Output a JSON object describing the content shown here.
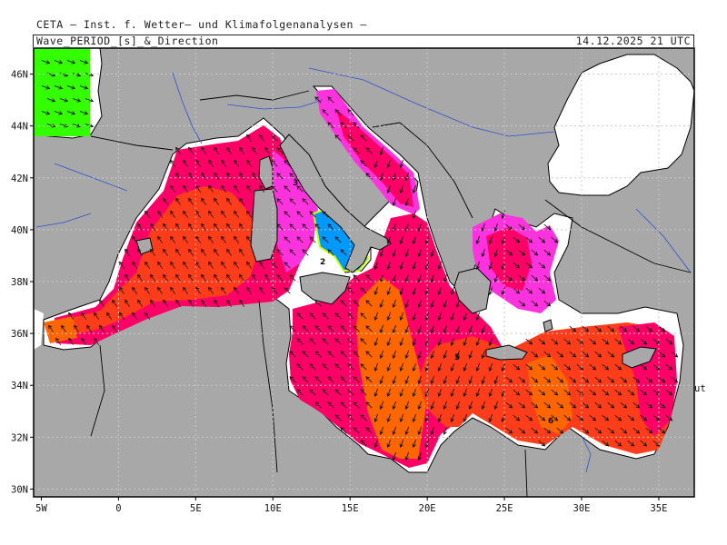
{
  "header": {
    "title": "CETA — Inst. f. Wetter— und Klimafolgenanalysen —",
    "parameter": "Wave_PERIOD_[s]_&_Direction",
    "valid_time": "14.12.2025 21 UTC"
  },
  "map": {
    "lon_range": [
      -5.5,
      37.3
    ],
    "lat_range": [
      29.7,
      47.0
    ],
    "lon_ticks": [
      "5W",
      "0",
      "5E",
      "10E",
      "15E",
      "20E",
      "25E",
      "30E",
      "35E"
    ],
    "lat_ticks": [
      "30N",
      "32N",
      "34N",
      "36N",
      "38N",
      "40N",
      "42N",
      "44N",
      "46N"
    ],
    "contour_labels": [
      "3",
      "2",
      "5",
      "6"
    ],
    "edge_label": "ut",
    "colors": {
      "land": "#a8a8a8",
      "coast": "#000000",
      "rivers": "#3050d0",
      "grid": "#c8c8c8",
      "period_green": "#33ff00",
      "period_blue": "#0099ff",
      "period_magenta": "#ff33dd",
      "period_pink": "#ff0066",
      "period_redorange": "#ff3d1a",
      "period_orange": "#ff6600",
      "nodata": "#ffffff"
    }
  }
}
